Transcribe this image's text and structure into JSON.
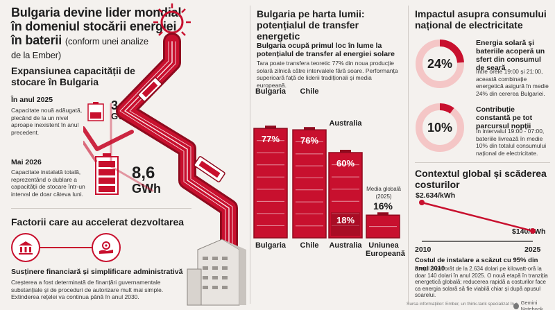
{
  "left": {
    "title_line1": "Bulgaria devine lider mondial",
    "title_line2": "în domeniul stocării energiei",
    "title_line3": "în baterii",
    "title_sub": "(conform unei analize",
    "title_sub2": "de la Ember)",
    "section1": "Expansiunea capacității de stocare în Bulgaria",
    "y2025_label": "În anul 2025",
    "y2025_text": "Capacitate nouă adăugată, plecând de la un nivel aproape inexistent în anul precedent.",
    "y2025_value": "3",
    "y2025_unit": "GWh",
    "may2026_label": "Mai 2026",
    "may2026_text": "Capacitate instalată totală, reprezentând o dublare a capacității de stocare într-un interval de doar câteva luni.",
    "may2026_value": "8,6",
    "may2026_unit": "GWh",
    "section2": "Factorii care au accelerat dezvoltarea",
    "support_title": "Susținere financiară și simplificare administrativă",
    "support_text": "Creșterea a fost determinată de finanțări guvernamentale substanțiale și de proceduri de autorizare mult mai simple. Extinderea rețelei va continua până în anul 2030."
  },
  "middle": {
    "title": "Bulgaria pe harta lumii: potențialul de transfer energetic",
    "subtitle": "Bulgaria ocupă primul loc în lume la potențialul de transfer al energiei solare",
    "text": "Tara poate transfera teoretic 77% din noua producție solară zilnică către intervalele fără soare. Performanța superioară față de liderii tradiționali și media europeană."
  },
  "chart_data": {
    "type": "bar",
    "categories": [
      "Bulgaria",
      "Chile",
      "Australia",
      "Uniunea Europeană"
    ],
    "values": [
      77,
      76,
      60,
      16
    ],
    "secondary": {
      "category": "Australia",
      "value": 18
    },
    "labels": [
      "77%",
      "76%",
      "60%",
      "18%",
      "16%"
    ],
    "eu_note": "Media globală (2025)",
    "ylim": [
      0,
      100
    ]
  },
  "right": {
    "title": "Impactul asupra consumului național de electricitate",
    "card1_pct": "24%",
    "card1_value": 24,
    "card1_title": "Energia solară și bateriile acoperă un sfert din consumul de seară",
    "card1_text": "Între orele 19:00 și 21:00, această combinație energetică asigură în medie 24% din cererea Bulgariei.",
    "card2_pct": "10%",
    "card2_value": 10,
    "card2_title": "Contribuție constantă pe tot parcursul nopții",
    "card2_text": "În intervalul 19:00 - 07:00, bateriile livrează în medie 10% din totalul consumului național de electricitate.",
    "context_title": "Contextul global și scăderea costurilor",
    "cost_chart": {
      "type": "line",
      "x": [
        2010,
        2025
      ],
      "y": [
        2634,
        140
      ],
      "start_label": "$2.634/kWh",
      "end_label": "$140/kWh",
      "x_labels": [
        "2010",
        "2025"
      ]
    },
    "cost_title": "Costul de instalare a scăzut cu 95% din anul 2010",
    "cost_text": "Prețul a coborât de la 2.634 dolari pe kilowatt-oră la doar 140 dolari în anul 2025. O nouă etapă în tranziția energetică globală; reducerea rapidă a costurilor face ca energia solară să fie viabilă chiar și după apusul soarelui.",
    "source": "Sursa informațiilor: Ember, un think-tank specializat în c",
    "brand": "Gemini Notebook"
  },
  "colors": {
    "accent": "#c8102e",
    "dark": "#8f0b1f",
    "light": "#f4b7b7",
    "bg": "#f4f1ee"
  }
}
